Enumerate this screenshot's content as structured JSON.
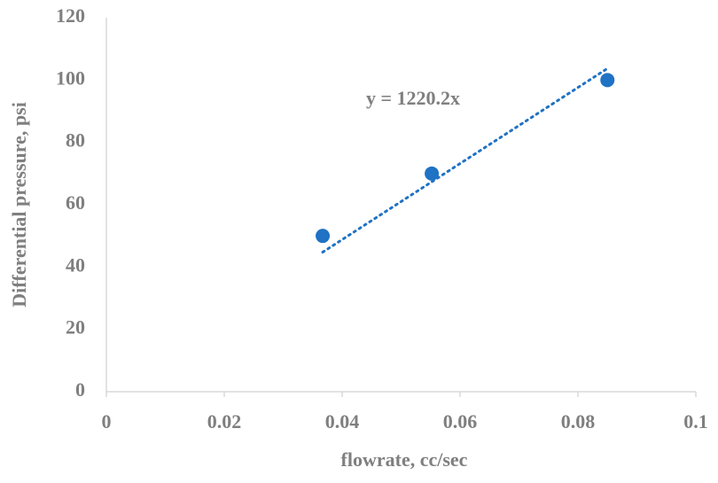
{
  "chart_data": {
    "type": "scatter",
    "x_label": "flowrate, cc/sec",
    "y_label": "Differential pressure, psi",
    "series": [
      {
        "color": "#1f72c4",
        "x": [
          0.0367,
          0.0552,
          0.085
        ],
        "values": [
          50,
          70,
          100
        ]
      }
    ],
    "trendline": {
      "label": "y = 1220.2x",
      "slope": 1220.2,
      "color": "#1f72c4"
    },
    "xlim": [
      0,
      0.1
    ],
    "xticks": [
      0,
      0.02,
      0.04,
      0.06,
      0.08,
      0.1
    ],
    "ylim": [
      0,
      120
    ],
    "yticks": [
      0,
      20,
      40,
      60,
      80,
      100,
      120
    ],
    "grid": false
  }
}
